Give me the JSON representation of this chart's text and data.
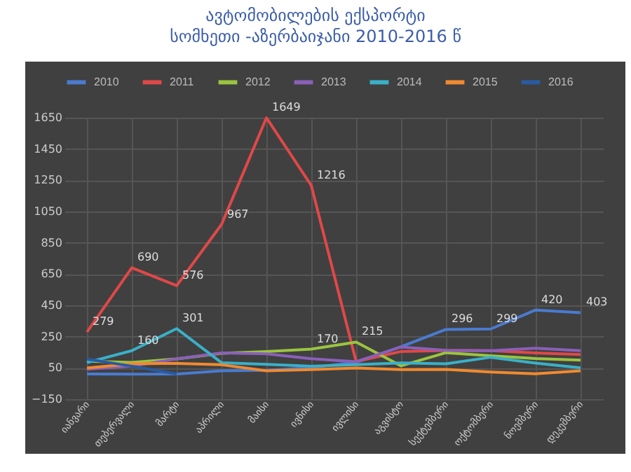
{
  "chart_data": {
    "type": "line",
    "title": "ავტომობილების ექსპორტი\nსომხეთი -აზერბაიჯანი 2010-2016 წ",
    "categories": [
      "იანვარი",
      "თებერვალი",
      "მარტი",
      "აპრილი",
      "მაისი",
      "ივნისი",
      "ივლისი",
      "აგვისტო",
      "სექტემბერი",
      "ოქტომბერი",
      "ნოემბერი",
      "დეკემბერი"
    ],
    "series": [
      {
        "name": "2010",
        "color": "#4a7bd0",
        "values": [
          11,
          10,
          11,
          31,
          35,
          52,
          86,
          185,
          296,
          299,
          420,
          403
        ],
        "value_labels": [
          null,
          null,
          null,
          null,
          null,
          null,
          null,
          null,
          "296",
          "299",
          "420",
          "403"
        ]
      },
      {
        "name": "2011",
        "color": "#e04848",
        "values": [
          279,
          690,
          576,
          967,
          1649,
          1216,
          90,
          155,
          161,
          160,
          145,
          135
        ],
        "value_labels": [
          "279",
          "690",
          "576",
          "967",
          "1649",
          "1216",
          null,
          null,
          null,
          null,
          null,
          null
        ]
      },
      {
        "name": "2012",
        "color": "#9bc440",
        "values": [
          93,
          85,
          107,
          143,
          154,
          170,
          215,
          63,
          147,
          128,
          110,
          100
        ],
        "value_labels": [
          null,
          null,
          null,
          null,
          null,
          "170",
          "215",
          null,
          null,
          null,
          null,
          null
        ]
      },
      {
        "name": "2013",
        "color": "#8a60b8",
        "values": [
          41,
          61,
          108,
          146,
          140,
          109,
          90,
          184,
          162,
          160,
          176,
          160
        ]
      },
      {
        "name": "2014",
        "color": "#3ab0c8",
        "values": [
          84,
          160,
          301,
          83,
          73,
          61,
          71,
          82,
          76,
          118,
          81,
          50
        ],
        "value_labels": [
          null,
          "160",
          "301",
          null,
          null,
          null,
          null,
          null,
          null,
          null,
          null,
          null
        ]
      },
      {
        "name": "2015",
        "color": "#f08a30",
        "values": [
          49,
          76,
          79,
          70,
          31,
          39,
          49,
          39,
          40,
          23,
          12,
          31
        ]
      },
      {
        "name": "2016",
        "color": "#2a5aa0",
        "values": [
          106,
          61,
          11,
          null,
          null,
          null,
          null,
          null,
          null,
          null,
          null,
          null
        ]
      }
    ],
    "ylim": [
      -150,
      1650
    ],
    "yticks": [
      -150,
      50,
      250,
      450,
      650,
      850,
      1050,
      1250,
      1450,
      1650
    ],
    "grid": true,
    "legend": "top"
  }
}
